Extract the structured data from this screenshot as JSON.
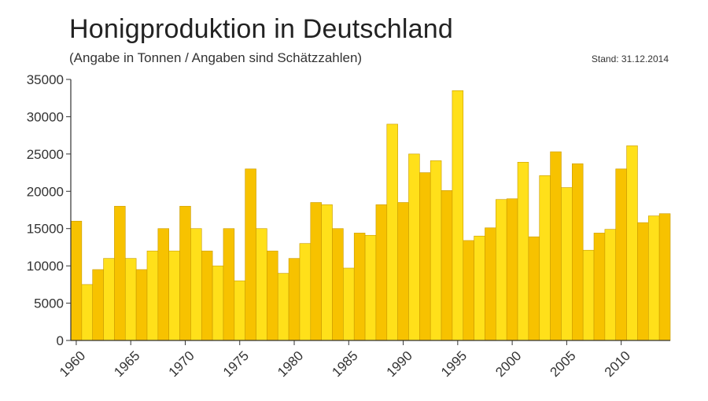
{
  "header": {
    "title": "Honigproduktion in Deutschland",
    "subtitle": "(Angabe in Tonnen / Angaben sind Schätzzahlen)",
    "stand": "Stand: 31.12.2014"
  },
  "colors": {
    "bar_a": "#F7C200",
    "bar_b": "#FFE01A",
    "bar_edge": "#C99A00",
    "axis": "#333333"
  },
  "chart_data": {
    "type": "bar",
    "title": "Honigproduktion in Deutschland",
    "subtitle": "(Angabe in Tonnen / Angaben sind Schätzzahlen)",
    "xlabel": "",
    "ylabel": "",
    "ylim": [
      0,
      35000
    ],
    "yticks": [
      0,
      5000,
      10000,
      15000,
      20000,
      25000,
      30000,
      35000
    ],
    "xtick_labels": [
      "1960",
      "1965",
      "1970",
      "1975",
      "1980",
      "1985",
      "1990",
      "1995",
      "2000",
      "2005",
      "2010"
    ],
    "grid": false,
    "categories": [
      1960,
      1961,
      1962,
      1963,
      1964,
      1965,
      1966,
      1967,
      1968,
      1969,
      1970,
      1971,
      1972,
      1973,
      1974,
      1975,
      1976,
      1977,
      1978,
      1979,
      1980,
      1981,
      1982,
      1983,
      1984,
      1985,
      1986,
      1987,
      1988,
      1989,
      1990,
      1991,
      1992,
      1993,
      1994,
      1995,
      1996,
      1997,
      1998,
      1999,
      2000,
      2001,
      2002,
      2003,
      2004,
      2005,
      2006,
      2007,
      2008,
      2009,
      2010,
      2011,
      2012,
      2013,
      2014
    ],
    "values": [
      16000,
      7500,
      9500,
      11000,
      18000,
      11000,
      9500,
      12000,
      15000,
      12000,
      18000,
      15000,
      12000,
      10000,
      15000,
      8000,
      23000,
      15000,
      12000,
      9000,
      11000,
      13000,
      18500,
      18200,
      15000,
      9700,
      14400,
      14100,
      18200,
      29000,
      18500,
      25000,
      22500,
      24100,
      20100,
      33500,
      13400,
      14000,
      15100,
      18900,
      19000,
      23900,
      13900,
      22100,
      25300,
      20500,
      23700,
      12100,
      14400,
      14900,
      23000,
      26100,
      15800,
      16700,
      17000
    ]
  }
}
